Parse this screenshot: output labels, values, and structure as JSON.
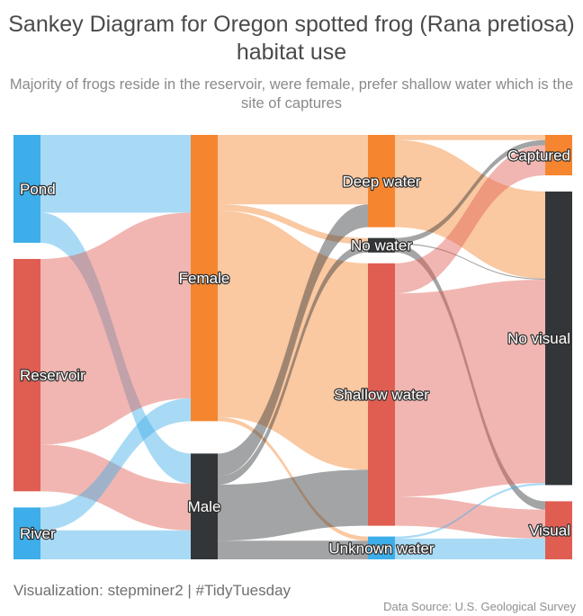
{
  "title": "Sankey Diagram for Oregon spotted frog (Rana pretiosa) habitat use",
  "subtitle": "Majority of frogs reside in the reservoir, were female, prefer shallow water which is the site of captures",
  "caption": "Visualization: stepminer2 | #TidyTuesday",
  "source": "Data Source: U.S. Geological Survey",
  "chart_data": {
    "type": "sankey",
    "nodes": [
      {
        "id": "pond",
        "label": "Pond",
        "color": "#3daee9"
      },
      {
        "id": "reservoir",
        "label": "Reservoir",
        "color": "#e05d52"
      },
      {
        "id": "river",
        "label": "River",
        "color": "#3daee9"
      },
      {
        "id": "female",
        "label": "Female",
        "color": "#f5862f"
      },
      {
        "id": "male",
        "label": "Male",
        "color": "#333638"
      },
      {
        "id": "deep",
        "label": "Deep water",
        "color": "#f5862f"
      },
      {
        "id": "nowater",
        "label": "No water",
        "color": "#333638"
      },
      {
        "id": "shallow",
        "label": "Shallow water",
        "color": "#e05d52"
      },
      {
        "id": "unknown",
        "label": "Unknown water",
        "color": "#3daee9"
      },
      {
        "id": "captured",
        "label": "Captured",
        "color": "#f5862f"
      },
      {
        "id": "novisual",
        "label": "No visual",
        "color": "#333638"
      },
      {
        "id": "visual",
        "label": "Visual",
        "color": "#e05d52"
      }
    ],
    "links": [
      {
        "source": "pond",
        "target": "female",
        "value": 75
      },
      {
        "source": "pond",
        "target": "male",
        "value": 29
      },
      {
        "source": "reservoir",
        "target": "female",
        "value": 179
      },
      {
        "source": "reservoir",
        "target": "male",
        "value": 45
      },
      {
        "source": "river",
        "target": "female",
        "value": 22
      },
      {
        "source": "river",
        "target": "male",
        "value": 28
      },
      {
        "source": "female",
        "target": "deep",
        "value": 67
      },
      {
        "source": "female",
        "target": "nowater",
        "value": 6
      },
      {
        "source": "female",
        "target": "shallow",
        "value": 199
      },
      {
        "source": "female",
        "target": "unknown",
        "value": 4
      },
      {
        "source": "male",
        "target": "deep",
        "value": 22
      },
      {
        "source": "male",
        "target": "nowater",
        "value": 8
      },
      {
        "source": "male",
        "target": "shallow",
        "value": 54
      },
      {
        "source": "male",
        "target": "unknown",
        "value": 18
      },
      {
        "source": "deep",
        "target": "captured",
        "value": 5
      },
      {
        "source": "deep",
        "target": "novisual",
        "value": 84
      },
      {
        "source": "nowater",
        "target": "captured",
        "value": 5
      },
      {
        "source": "nowater",
        "target": "novisual",
        "value": 1
      },
      {
        "source": "nowater",
        "target": "visual",
        "value": 8
      },
      {
        "source": "shallow",
        "target": "captured",
        "value": 29
      },
      {
        "source": "shallow",
        "target": "novisual",
        "value": 196
      },
      {
        "source": "shallow",
        "target": "visual",
        "value": 28
      },
      {
        "source": "unknown",
        "target": "novisual",
        "value": 2
      },
      {
        "source": "unknown",
        "target": "visual",
        "value": 20
      }
    ]
  }
}
